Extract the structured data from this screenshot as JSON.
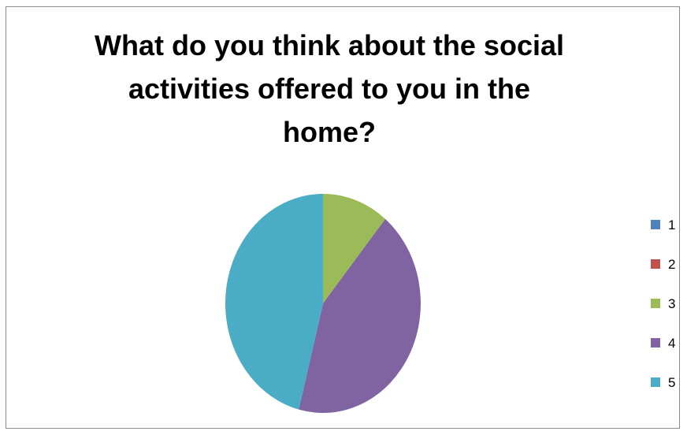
{
  "chart_data": {
    "type": "pie",
    "title": "What do you think about the social activities offered to you in the home?",
    "title_lines": [
      "What do you think about the social",
      "activities offered to you in the",
      "home?"
    ],
    "categories": [
      "1",
      "2",
      "3",
      "4",
      "5"
    ],
    "values": [
      0,
      0,
      11,
      43,
      46
    ],
    "colors": [
      "#4f81bd",
      "#c0504d",
      "#9bbb59",
      "#8064a2",
      "#4bacc6"
    ],
    "legend_position": "right"
  }
}
